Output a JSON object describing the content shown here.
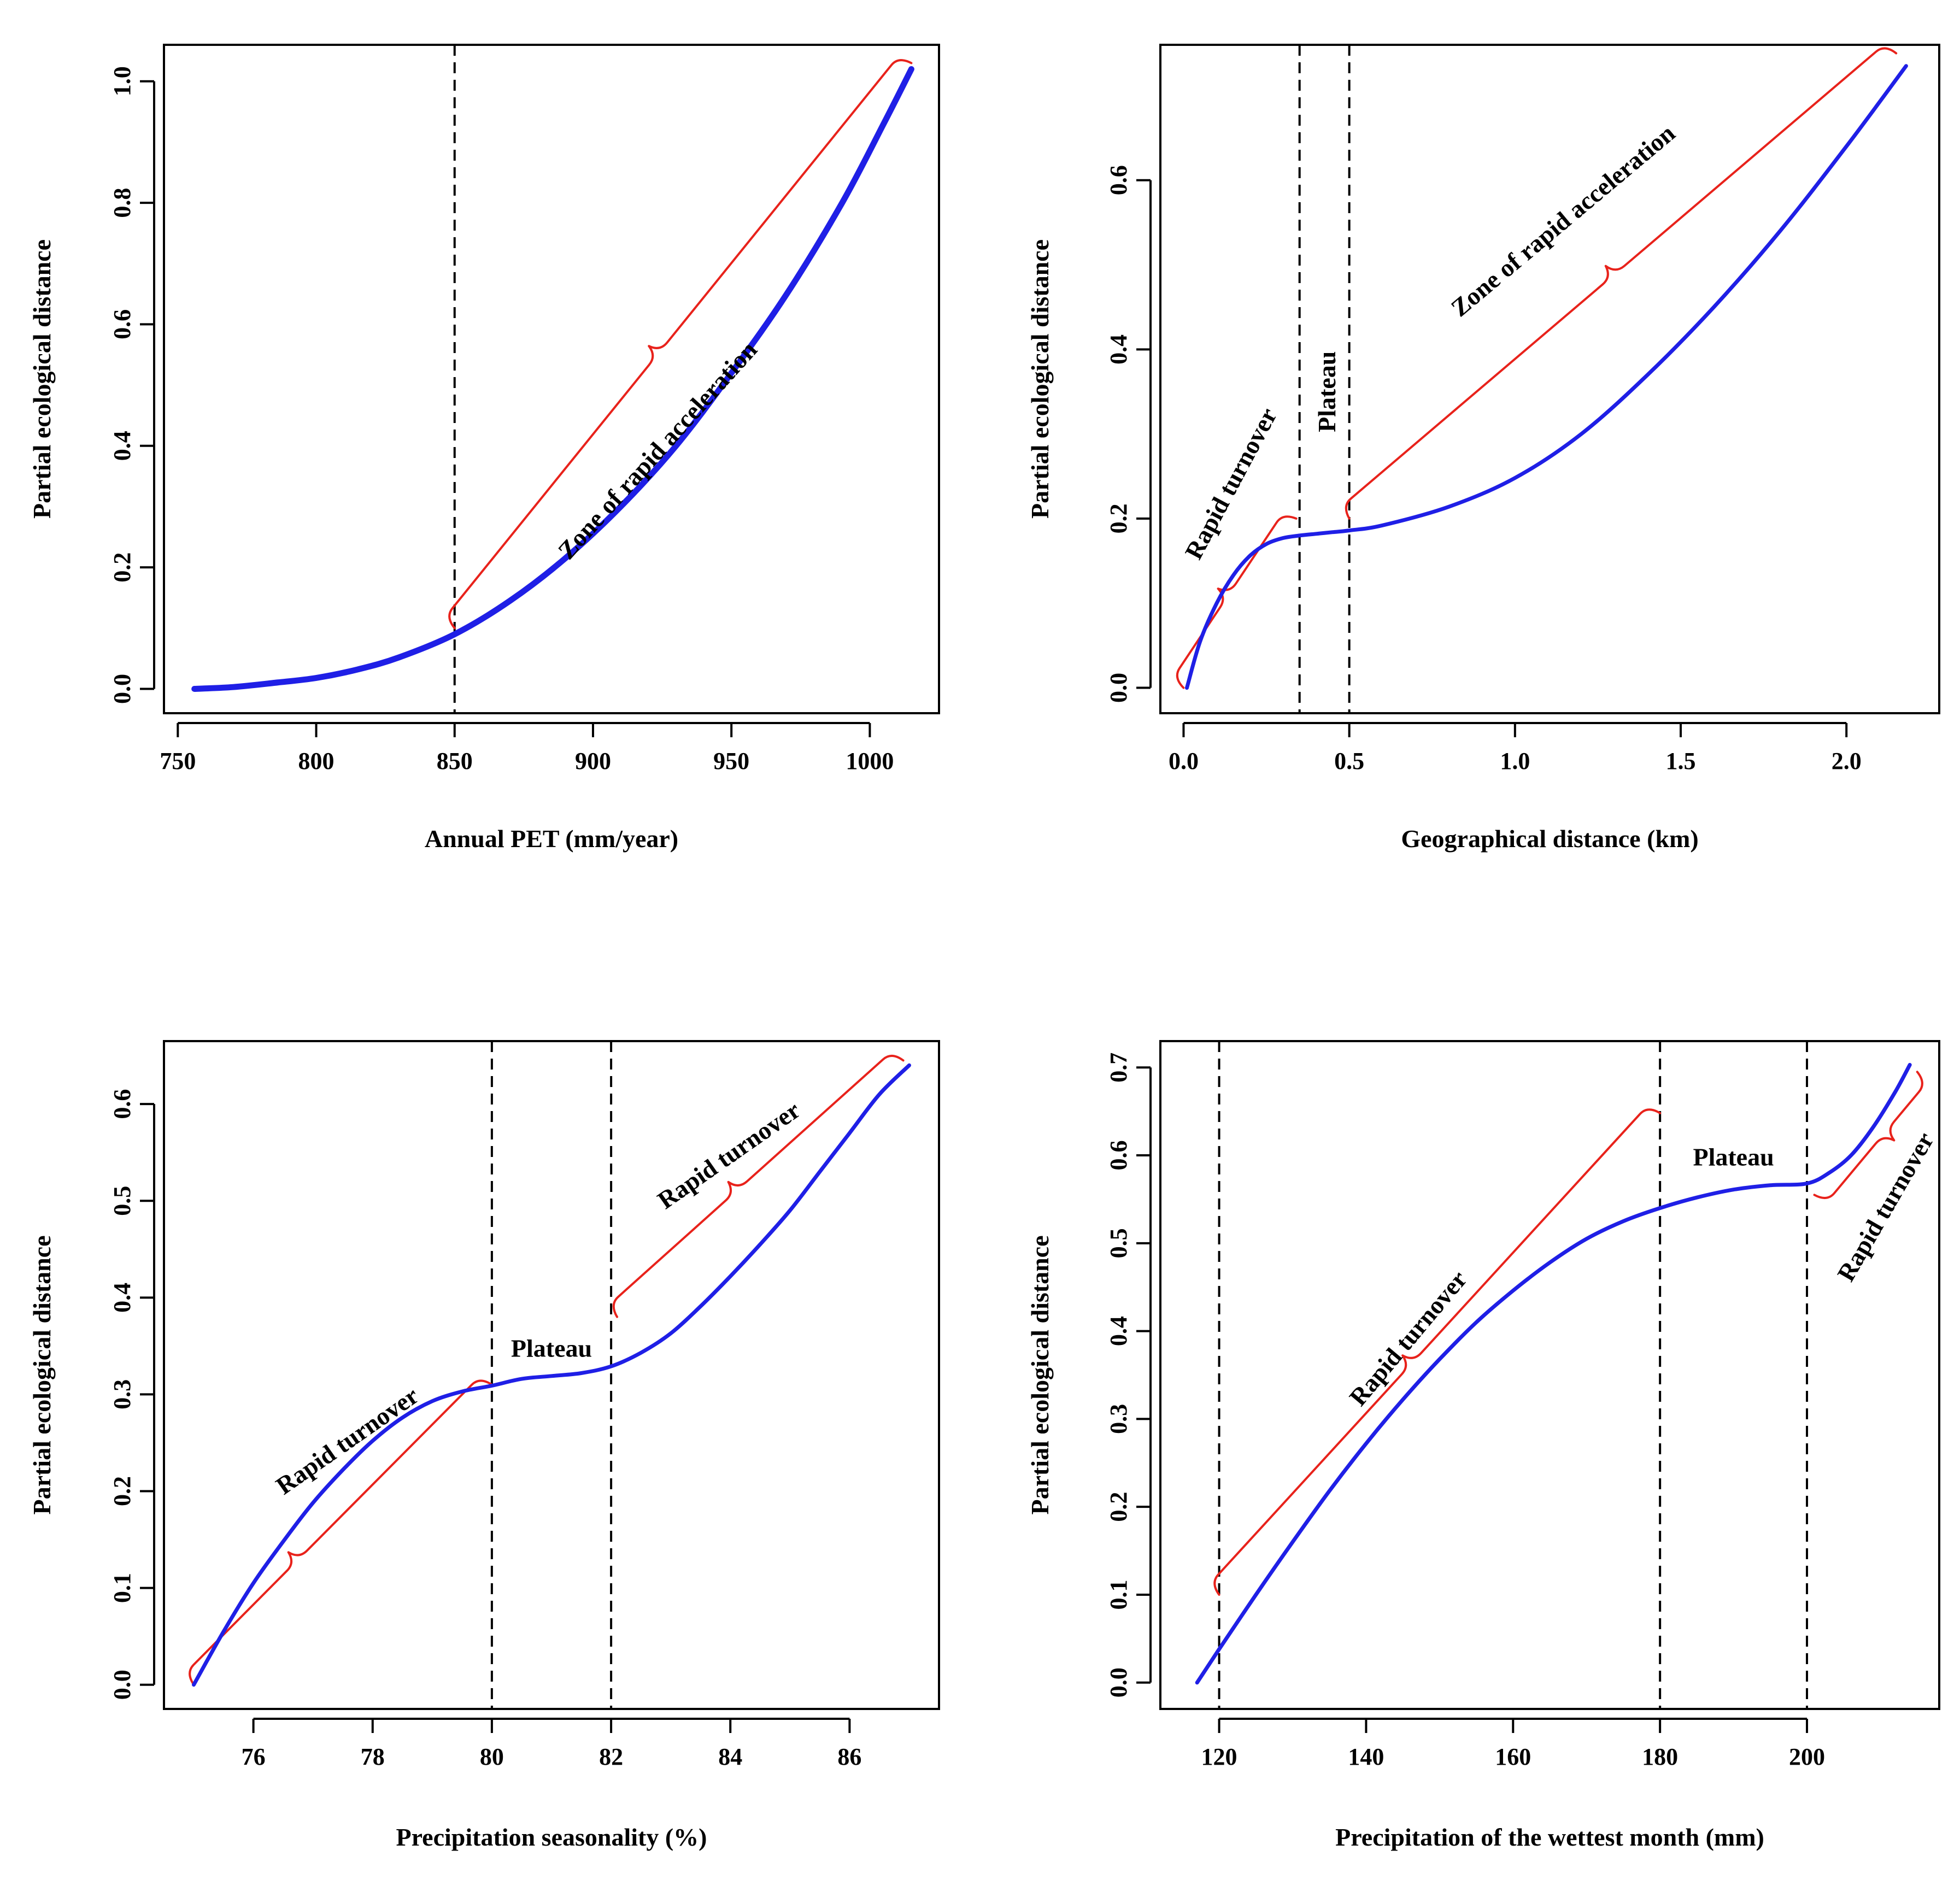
{
  "chart_data": [
    {
      "type": "line",
      "xlabel": "Annual PET (mm/year)",
      "ylabel": "Partial ecological distance",
      "xlim": [
        745,
        1025
      ],
      "ylim": [
        -0.04,
        1.06
      ],
      "xticks": [
        750,
        800,
        850,
        900,
        950,
        1000
      ],
      "xtick_labels": [
        "750",
        "800",
        "850",
        "900",
        "950",
        "1000"
      ],
      "yticks": [
        0.0,
        0.2,
        0.4,
        0.6,
        0.8,
        1.0
      ],
      "ytick_labels": [
        "0.0",
        "0.2",
        "0.4",
        "0.6",
        "0.8",
        "1.0"
      ],
      "vlines": [
        850
      ],
      "series": [
        {
          "x": [
            756,
            770,
            785,
            800,
            815,
            830,
            850,
            870,
            890,
            910,
            930,
            950,
            970,
            990,
            1005,
            1015
          ],
          "y": [
            0.0,
            0.003,
            0.01,
            0.018,
            0.032,
            0.052,
            0.09,
            0.145,
            0.215,
            0.3,
            0.4,
            0.52,
            0.65,
            0.8,
            0.93,
            1.02
          ]
        }
      ],
      "line_width": 11,
      "annotations": [
        {
          "text": "Zone of rapid acceleration",
          "x": 924,
          "y": 0.39,
          "angle": -48
        }
      ],
      "braces": [
        {
          "x0": 850,
          "y0": 0.1,
          "x1": 1015,
          "y1": 1.03,
          "tip": 0.47,
          "side": "above"
        }
      ]
    },
    {
      "type": "line",
      "xlabel": "Geographical distance  (km)",
      "ylabel": "Partial ecological distance",
      "xlim": [
        -0.07,
        2.28
      ],
      "ylim": [
        -0.03,
        0.76
      ],
      "xticks": [
        0.0,
        0.5,
        1.0,
        1.5,
        2.0
      ],
      "xtick_labels": [
        "0.0",
        "0.5",
        "1.0",
        "1.5",
        "2.0"
      ],
      "yticks": [
        0.0,
        0.2,
        0.4,
        0.6
      ],
      "ytick_labels": [
        "0.0",
        "0.2",
        "0.4",
        "0.6"
      ],
      "vlines": [
        0.35,
        0.5
      ],
      "series": [
        {
          "x": [
            0.01,
            0.05,
            0.1,
            0.15,
            0.2,
            0.25,
            0.3,
            0.35,
            0.4,
            0.45,
            0.5,
            0.6,
            0.8,
            1.0,
            1.2,
            1.4,
            1.6,
            1.8,
            2.0,
            2.18
          ],
          "y": [
            0.0,
            0.055,
            0.1,
            0.133,
            0.156,
            0.17,
            0.177,
            0.18,
            0.182,
            0.184,
            0.186,
            0.192,
            0.214,
            0.248,
            0.3,
            0.37,
            0.45,
            0.54,
            0.64,
            0.735
          ]
        }
      ],
      "line_width": 7,
      "annotations": [
        {
          "text": "Rapid turnover",
          "x": 0.15,
          "y": 0.24,
          "angle": -62
        },
        {
          "text": "Plateau",
          "x": 0.44,
          "y": 0.35,
          "angle": -90
        },
        {
          "text": "Zone of rapid acceleration",
          "x": 1.15,
          "y": 0.55,
          "angle": -40
        }
      ],
      "braces": [
        {
          "x0": 0.0,
          "y0": 0.0,
          "x1": 0.34,
          "y1": 0.2,
          "tip": 0.5,
          "side": "above"
        },
        {
          "x0": 0.5,
          "y0": 0.2,
          "x1": 2.15,
          "y1": 0.75,
          "tip": 0.5,
          "side": "above"
        }
      ]
    },
    {
      "type": "line",
      "xlabel": "Precipitation seasonality (%)",
      "ylabel": "Partial ecological distance",
      "xlim": [
        74.5,
        87.5
      ],
      "ylim": [
        -0.025,
        0.665
      ],
      "xticks": [
        76,
        78,
        80,
        82,
        84,
        86
      ],
      "xtick_labels": [
        "76",
        "78",
        "80",
        "82",
        "84",
        "86"
      ],
      "yticks": [
        0.0,
        0.1,
        0.2,
        0.3,
        0.4,
        0.5,
        0.6
      ],
      "ytick_labels": [
        "0.0",
        "0.1",
        "0.2",
        "0.3",
        "0.4",
        "0.5",
        "0.6"
      ],
      "vlines": [
        80,
        82
      ],
      "series": [
        {
          "x": [
            75.0,
            75.5,
            76.0,
            76.5,
            77.0,
            77.5,
            78.0,
            78.5,
            79.0,
            79.5,
            80.0,
            80.5,
            81.0,
            81.5,
            82.0,
            82.5,
            83.0,
            83.5,
            84.0,
            84.5,
            85.0,
            85.5,
            86.0,
            86.5,
            87.0
          ],
          "y": [
            0.0,
            0.055,
            0.105,
            0.148,
            0.188,
            0.222,
            0.252,
            0.276,
            0.293,
            0.303,
            0.309,
            0.316,
            0.319,
            0.322,
            0.329,
            0.343,
            0.363,
            0.391,
            0.422,
            0.455,
            0.49,
            0.53,
            0.57,
            0.61,
            0.64
          ]
        }
      ],
      "line_width": 7,
      "annotations": [
        {
          "text": "Rapid turnover",
          "x": 77.6,
          "y": 0.25,
          "angle": -35
        },
        {
          "text": "Plateau",
          "x": 81.0,
          "y": 0.345,
          "angle": 0
        },
        {
          "text": "Rapid turnover",
          "x": 84.0,
          "y": 0.545,
          "angle": -35
        }
      ],
      "braces": [
        {
          "x0": 75.0,
          "y0": 0.0,
          "x1": 80.0,
          "y1": 0.31,
          "tip": 0.38,
          "side": "above"
        },
        {
          "x0": 82.1,
          "y0": 0.38,
          "x1": 86.9,
          "y1": 0.645,
          "tip": 0.45,
          "side": "above"
        }
      ]
    },
    {
      "type": "line",
      "xlabel": "Precipitation of the wettest month (mm)",
      "ylabel": "Partial ecological distance",
      "xlim": [
        112,
        218
      ],
      "ylim": [
        -0.03,
        0.73
      ],
      "xticks": [
        120,
        140,
        160,
        180,
        200
      ],
      "xtick_labels": [
        "120",
        "140",
        "160",
        "180",
        "200"
      ],
      "yticks": [
        0.0,
        0.1,
        0.2,
        0.3,
        0.4,
        0.5,
        0.6,
        0.7
      ],
      "ytick_labels": [
        "0.0",
        "0.1",
        "0.2",
        "0.3",
        "0.4",
        "0.5",
        "0.6",
        "0.7"
      ],
      "vlines": [
        120,
        180,
        200
      ],
      "series": [
        {
          "x": [
            117,
            120,
            125,
            130,
            135,
            140,
            145,
            150,
            155,
            160,
            165,
            170,
            175,
            180,
            185,
            190,
            195,
            200,
            203,
            206,
            209,
            212,
            214
          ],
          "y": [
            0.0,
            0.038,
            0.1,
            0.16,
            0.218,
            0.272,
            0.322,
            0.368,
            0.41,
            0.446,
            0.478,
            0.505,
            0.525,
            0.54,
            0.552,
            0.561,
            0.566,
            0.568,
            0.58,
            0.6,
            0.632,
            0.672,
            0.703
          ]
        }
      ],
      "line_width": 7,
      "annotations": [
        {
          "text": "Rapid turnover",
          "x": 146,
          "y": 0.39,
          "angle": -50
        },
        {
          "text": "Plateau",
          "x": 190,
          "y": 0.595,
          "angle": 0
        },
        {
          "text": "Rapid turnover",
          "x": 211,
          "y": 0.54,
          "angle": -60
        }
      ],
      "braces": [
        {
          "x0": 120,
          "y0": 0.1,
          "x1": 180,
          "y1": 0.648,
          "tip": 0.46,
          "side": "above"
        },
        {
          "x0": 201,
          "y0": 0.555,
          "x1": 215,
          "y1": 0.695,
          "tip": 0.58,
          "side": "below"
        }
      ]
    }
  ]
}
